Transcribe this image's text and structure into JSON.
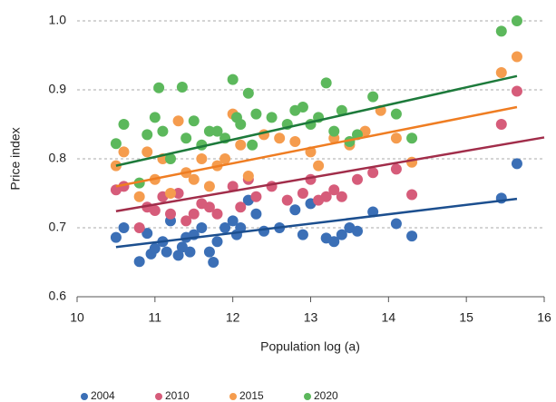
{
  "chart_data": {
    "type": "scatter",
    "x_label": "Population log (a)",
    "y_label": "Price index",
    "xlim": [
      10,
      16
    ],
    "ylim": [
      0.6,
      1.0
    ],
    "xticks": [
      10,
      11,
      12,
      13,
      14,
      15,
      16
    ],
    "yticks": [
      0.6,
      0.7,
      0.8,
      0.9,
      {
        "value": 1,
        "label": "1.0"
      }
    ],
    "grid": true,
    "legend": "bottom",
    "series": [
      {
        "name": "2004",
        "color": "#3b6fb6",
        "trend_color": "#1c4f8f",
        "x": [
          10.5,
          10.6,
          10.8,
          10.9,
          10.95,
          11.0,
          11.1,
          11.15,
          11.2,
          11.3,
          11.35,
          11.4,
          11.45,
          11.5,
          11.6,
          11.7,
          11.75,
          11.8,
          11.9,
          12.0,
          12.05,
          12.1,
          12.2,
          12.3,
          12.4,
          12.6,
          12.8,
          12.9,
          13.0,
          13.2,
          13.3,
          13.4,
          13.5,
          13.6,
          13.8,
          14.1,
          14.3,
          15.45,
          15.65
        ],
        "values": [
          0.686,
          0.7,
          0.651,
          0.692,
          0.662,
          0.67,
          0.68,
          0.665,
          0.71,
          0.66,
          0.672,
          0.686,
          0.665,
          0.69,
          0.7,
          0.665,
          0.65,
          0.68,
          0.7,
          0.71,
          0.69,
          0.7,
          0.74,
          0.72,
          0.695,
          0.7,
          0.726,
          0.69,
          0.735,
          0.685,
          0.68,
          0.69,
          0.7,
          0.695,
          0.723,
          0.706,
          0.688,
          0.743,
          0.793
        ],
        "trend": {
          "x": [
            10.5,
            15.65
          ],
          "y": [
            0.672,
            0.742
          ]
        }
      },
      {
        "name": "2010",
        "color": "#d65c7a",
        "trend_color": "#a12d4a",
        "x": [
          10.5,
          10.6,
          10.8,
          10.9,
          11.0,
          11.1,
          11.2,
          11.3,
          11.4,
          11.5,
          11.6,
          11.7,
          11.8,
          12.0,
          12.1,
          12.2,
          12.3,
          12.5,
          12.7,
          12.9,
          13.0,
          13.1,
          13.2,
          13.3,
          13.4,
          13.6,
          13.8,
          14.1,
          14.3,
          15.45,
          15.65
        ],
        "values": [
          0.755,
          0.76,
          0.7,
          0.73,
          0.725,
          0.745,
          0.72,
          0.75,
          0.71,
          0.72,
          0.735,
          0.73,
          0.72,
          0.76,
          0.73,
          0.77,
          0.745,
          0.76,
          0.74,
          0.75,
          0.77,
          0.74,
          0.745,
          0.755,
          0.745,
          0.77,
          0.78,
          0.785,
          0.748,
          0.85,
          0.898
        ],
        "trend": {
          "x": [
            10.5,
            16
          ],
          "y": [
            0.724,
            0.831
          ]
        }
      },
      {
        "name": "2015",
        "color": "#f59c4e",
        "trend_color": "#ef7d22",
        "x": [
          10.5,
          10.6,
          10.8,
          10.9,
          11.0,
          11.1,
          11.2,
          11.3,
          11.4,
          11.5,
          11.6,
          11.7,
          11.8,
          11.9,
          12.0,
          12.1,
          12.2,
          12.4,
          12.6,
          12.8,
          13.0,
          13.1,
          13.3,
          13.5,
          13.7,
          13.9,
          14.1,
          14.3,
          15.45,
          15.65
        ],
        "values": [
          0.79,
          0.81,
          0.745,
          0.81,
          0.77,
          0.8,
          0.75,
          0.855,
          0.78,
          0.77,
          0.8,
          0.76,
          0.79,
          0.8,
          0.865,
          0.82,
          0.775,
          0.835,
          0.83,
          0.825,
          0.81,
          0.79,
          0.83,
          0.82,
          0.84,
          0.87,
          0.83,
          0.795,
          0.925,
          0.948
        ],
        "trend": {
          "x": [
            10.5,
            15.65
          ],
          "y": [
            0.76,
            0.875
          ]
        }
      },
      {
        "name": "2020",
        "color": "#5cb85c",
        "trend_color": "#1d7a3b",
        "x": [
          10.5,
          10.6,
          10.8,
          10.9,
          11.0,
          11.05,
          11.1,
          11.2,
          11.35,
          11.4,
          11.5,
          11.6,
          11.7,
          11.8,
          11.9,
          12.0,
          12.05,
          12.1,
          12.2,
          12.25,
          12.3,
          12.5,
          12.7,
          12.8,
          12.9,
          13.0,
          13.1,
          13.2,
          13.3,
          13.4,
          13.5,
          13.6,
          13.8,
          14.1,
          14.3,
          15.45,
          15.65
        ],
        "values": [
          0.822,
          0.85,
          0.765,
          0.835,
          0.86,
          0.903,
          0.84,
          0.8,
          0.904,
          0.83,
          0.855,
          0.82,
          0.84,
          0.84,
          0.83,
          0.915,
          0.86,
          0.85,
          0.895,
          0.82,
          0.865,
          0.86,
          0.85,
          0.87,
          0.875,
          0.85,
          0.86,
          0.91,
          0.84,
          0.87,
          0.825,
          0.835,
          0.89,
          0.865,
          0.83,
          0.985,
          1.0
        ],
        "trend": {
          "x": [
            10.5,
            15.65
          ],
          "y": [
            0.79,
            0.92
          ]
        }
      }
    ]
  }
}
